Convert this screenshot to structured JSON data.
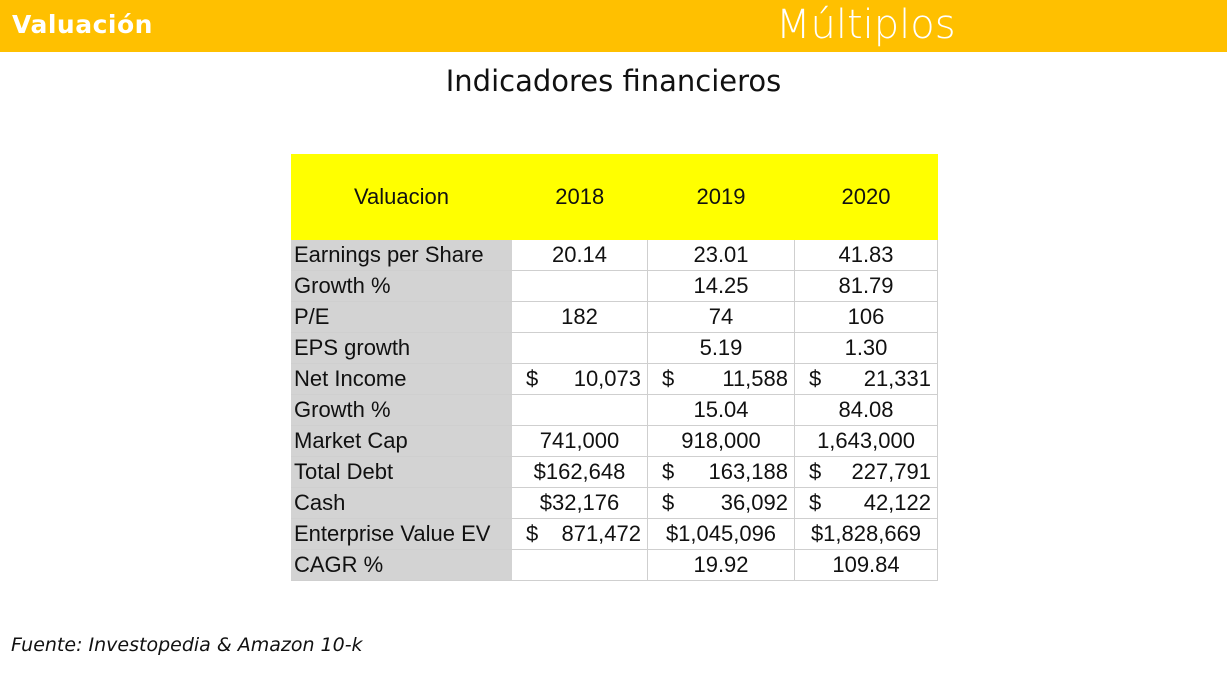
{
  "header": {
    "left_title": "Valuación",
    "right_title": "Múltiplos"
  },
  "subtitle": "Indicadores financieros",
  "table": {
    "headers": [
      "Valuacion",
      "2018",
      "2019",
      "2020"
    ],
    "rows": [
      {
        "label": "Earnings per Share",
        "v2018": "20.14",
        "v2019": "23.01",
        "v2020": "41.83"
      },
      {
        "label": "Growth %",
        "v2018": "",
        "v2019": "14.25",
        "v2020": "81.79"
      },
      {
        "label": "P/E",
        "v2018": "182",
        "v2019": "74",
        "v2020": "106"
      },
      {
        "label": "EPS growth",
        "v2018": "",
        "v2019": "5.19",
        "v2020": "1.30"
      },
      {
        "label": "Net Income",
        "v2018": "$ 10,073",
        "v2019": "$ 11,588",
        "v2020": "$ 21,331"
      },
      {
        "label": "Growth %",
        "v2018": "",
        "v2019": "15.04",
        "v2020": "84.08"
      },
      {
        "label": "Market Cap",
        "v2018": "741,000",
        "v2019": "918,000",
        "v2020": "1,643,000"
      },
      {
        "label": "Total Debt",
        "v2018": "$162,648",
        "v2019": "$ 163,188",
        "v2020": "$ 227,791"
      },
      {
        "label": "Cash",
        "v2018": "$32,176",
        "v2019": "$ 36,092",
        "v2020": "$ 42,122"
      },
      {
        "label": "Enterprise Value EV",
        "v2018": "$ 871,472",
        "v2019": "$1,045,096",
        "v2020": "$1,828,669"
      },
      {
        "label": "CAGR %",
        "v2018": "",
        "v2019": "19.92",
        "v2020": "109.84"
      }
    ]
  },
  "source": "Fuente: Investopedia & Amazon 10-k",
  "colors": {
    "header_bar": "#ffc000",
    "table_header": "#ffff00",
    "label_column": "#d3d3d3"
  }
}
